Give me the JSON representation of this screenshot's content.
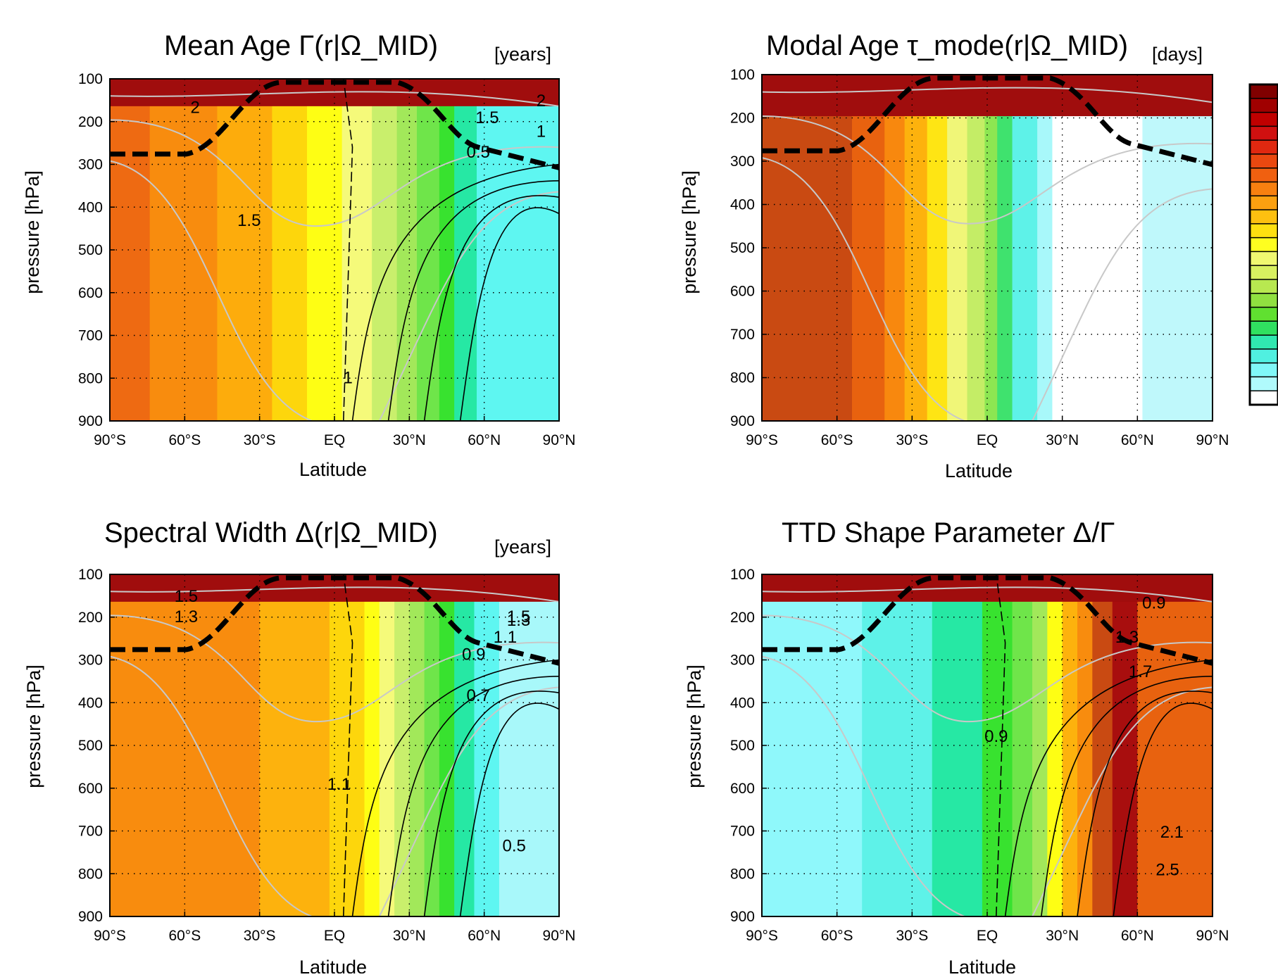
{
  "chart_data": [
    {
      "type": "heatmap",
      "title": "Mean Age Γ(r|Ω_MID)",
      "units": "[years]",
      "xlabel": "Latitude",
      "ylabel": "pressure [hPa]",
      "x_ticks": [
        "90°S",
        "60°S",
        "30°S",
        "EQ",
        "30°N",
        "60°N",
        "90°N"
      ],
      "y_ticks": [
        "100",
        "200",
        "300",
        "400",
        "500",
        "600",
        "700",
        "800",
        "900"
      ],
      "xlim": [
        -90,
        90
      ],
      "ylim": [
        900,
        100
      ],
      "grid": true,
      "contour_labels": [
        "2",
        "1.5",
        "2",
        "1",
        "0.5",
        "1.5",
        "1"
      ],
      "color_bands": [
        {
          "lat": [
            -90,
            -74
          ],
          "color": "#ee6a12"
        },
        {
          "lat": [
            -74,
            -47
          ],
          "color": "#f88c0e"
        },
        {
          "lat": [
            -47,
            -25
          ],
          "color": "#fdac0c"
        },
        {
          "lat": [
            -25,
            -11
          ],
          "color": "#fdd60c"
        },
        {
          "lat": [
            -11,
            3
          ],
          "color": "#fefe14"
        },
        {
          "lat": [
            3,
            15
          ],
          "color": "#f5fa7a"
        },
        {
          "lat": [
            15,
            25
          ],
          "color": "#c9ef6c"
        },
        {
          "lat": [
            25,
            33
          ],
          "color": "#a2e85a"
        },
        {
          "lat": [
            33,
            42
          ],
          "color": "#6fe54a"
        },
        {
          "lat": [
            42,
            48
          ],
          "color": "#38e22f"
        },
        {
          "lat": [
            48,
            57
          ],
          "color": "#26e8a4"
        },
        {
          "lat": [
            57,
            90
          ],
          "color": "#5ef6f1"
        }
      ]
    },
    {
      "type": "heatmap",
      "title": "Modal Age τ_mode(r|Ω_MID)",
      "units": "[days]",
      "xlabel": "Latitude",
      "ylabel": "pressure [hPa]",
      "x_ticks": [
        "90°S",
        "60°S",
        "30°S",
        "EQ",
        "30°N",
        "60°N",
        "90°N"
      ],
      "y_ticks": [
        "100",
        "200",
        "300",
        "400",
        "500",
        "600",
        "700",
        "800",
        "900"
      ],
      "xlim": [
        -90,
        90
      ],
      "ylim": [
        900,
        100
      ],
      "grid": true,
      "contour_labels": [],
      "color_bands": [
        {
          "lat": [
            -90,
            -54
          ],
          "color": "#c94a12"
        },
        {
          "lat": [
            -54,
            -41
          ],
          "color": "#e8620f"
        },
        {
          "lat": [
            -41,
            -33
          ],
          "color": "#f8880e"
        },
        {
          "lat": [
            -33,
            -24
          ],
          "color": "#fdb20d"
        },
        {
          "lat": [
            -24,
            -16
          ],
          "color": "#fee514"
        },
        {
          "lat": [
            -16,
            -8
          ],
          "color": "#f0f678"
        },
        {
          "lat": [
            -8,
            -1
          ],
          "color": "#c4ed66"
        },
        {
          "lat": [
            -1,
            4
          ],
          "color": "#8ce652"
        },
        {
          "lat": [
            4,
            10
          ],
          "color": "#3fe26e"
        },
        {
          "lat": [
            10,
            20
          ],
          "color": "#5ef2e8"
        },
        {
          "lat": [
            20,
            26
          ],
          "color": "#a8f8fa"
        },
        {
          "lat": [
            26,
            62
          ],
          "color": "#ffffff"
        },
        {
          "lat": [
            62,
            90
          ],
          "color": "#bff8fb"
        }
      ]
    },
    {
      "type": "heatmap",
      "title": "Spectral Width Δ(r|Ω_MID)",
      "units": "[years]",
      "xlabel": "Latitude",
      "ylabel": "pressure [hPa]",
      "x_ticks": [
        "90°S",
        "60°S",
        "30°S",
        "EQ",
        "30°N",
        "60°N",
        "90°N"
      ],
      "y_ticks": [
        "100",
        "200",
        "300",
        "400",
        "500",
        "600",
        "700",
        "800",
        "900"
      ],
      "xlim": [
        -90,
        90
      ],
      "ylim": [
        900,
        100
      ],
      "grid": true,
      "contour_labels": [
        "1.5",
        "1.3",
        "1.5",
        "1.3",
        "1.1",
        "0.9",
        "0.7",
        "1.1",
        "0.5"
      ],
      "color_bands": [
        {
          "lat": [
            -90,
            -30
          ],
          "color": "#f88c0e"
        },
        {
          "lat": [
            -30,
            -2
          ],
          "color": "#fdb20d"
        },
        {
          "lat": [
            -2,
            12
          ],
          "color": "#fdd60c"
        },
        {
          "lat": [
            12,
            18
          ],
          "color": "#fefe14"
        },
        {
          "lat": [
            18,
            24
          ],
          "color": "#f5fa7a"
        },
        {
          "lat": [
            24,
            30
          ],
          "color": "#c9ef6c"
        },
        {
          "lat": [
            30,
            36
          ],
          "color": "#a2e85a"
        },
        {
          "lat": [
            36,
            42
          ],
          "color": "#6fe54a"
        },
        {
          "lat": [
            42,
            48
          ],
          "color": "#38e22f"
        },
        {
          "lat": [
            48,
            56
          ],
          "color": "#26e8a4"
        },
        {
          "lat": [
            56,
            66
          ],
          "color": "#5ef6f1"
        },
        {
          "lat": [
            66,
            90
          ],
          "color": "#a8f8fa"
        }
      ]
    },
    {
      "type": "heatmap",
      "title": "TTD Shape Parameter Δ/Γ",
      "units": "",
      "xlabel": "Latitude",
      "ylabel": "pressure [hPa]",
      "x_ticks": [
        "90°S",
        "60°S",
        "30°S",
        "EQ",
        "30°N",
        "60°N",
        "90°N"
      ],
      "y_ticks": [
        "100",
        "200",
        "300",
        "400",
        "500",
        "600",
        "700",
        "800",
        "900"
      ],
      "xlim": [
        -90,
        90
      ],
      "ylim": [
        900,
        100
      ],
      "grid": true,
      "contour_labels": [
        "0.9",
        "1.3",
        "1.7",
        "0.9",
        "2.1",
        "2.5"
      ],
      "color_bands": [
        {
          "lat": [
            -90,
            -50
          ],
          "color": "#8ff8fb"
        },
        {
          "lat": [
            -50,
            -22
          ],
          "color": "#5ef2e8"
        },
        {
          "lat": [
            -22,
            -2
          ],
          "color": "#26e8a4"
        },
        {
          "lat": [
            -2,
            10
          ],
          "color": "#38e22f"
        },
        {
          "lat": [
            10,
            18
          ],
          "color": "#6fe54a"
        },
        {
          "lat": [
            18,
            24
          ],
          "color": "#a2e85a"
        },
        {
          "lat": [
            24,
            30
          ],
          "color": "#fefe14"
        },
        {
          "lat": [
            30,
            36
          ],
          "color": "#fdb20d"
        },
        {
          "lat": [
            36,
            42
          ],
          "color": "#f88c0e"
        },
        {
          "lat": [
            42,
            50
          ],
          "color": "#c94a12"
        },
        {
          "lat": [
            50,
            60
          ],
          "color": "#a80e0e"
        },
        {
          "lat": [
            60,
            90
          ],
          "color": "#e8620f"
        }
      ]
    }
  ],
  "colorbar": {
    "colors": [
      "#800000",
      "#a00000",
      "#c00000",
      "#d01010",
      "#e02810",
      "#ea4810",
      "#f06010",
      "#f88010",
      "#fca010",
      "#fdc010",
      "#fee010",
      "#fefe20",
      "#f0f870",
      "#d8f060",
      "#b8e850",
      "#90e040",
      "#60e030",
      "#30e060",
      "#30e8b0",
      "#50f0e0",
      "#80f8f8",
      "#b0fafc",
      "#ffffff"
    ]
  }
}
